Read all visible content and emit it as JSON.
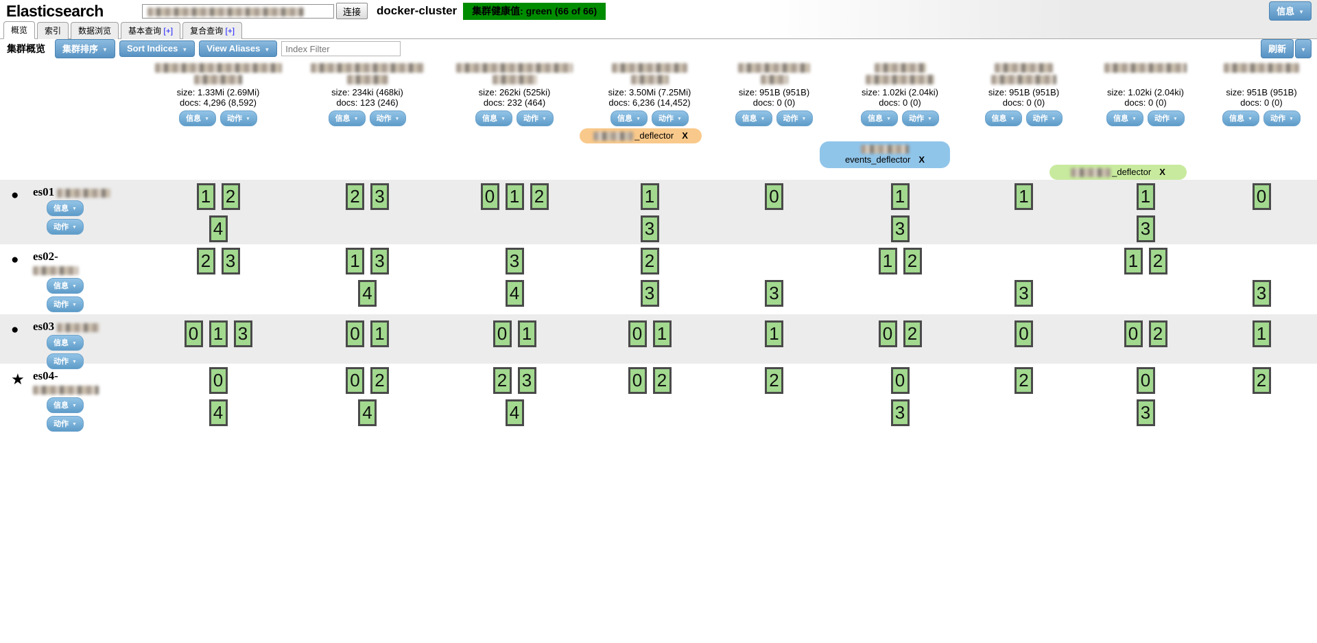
{
  "header": {
    "app_title": "Elasticsearch",
    "connect_button": "连接",
    "cluster_name": "docker-cluster",
    "health_badge": "集群健康值: green (66 of 66)",
    "info_button": "信息"
  },
  "tabs": [
    {
      "label": "概览",
      "active": true
    },
    {
      "label": "索引",
      "active": false
    },
    {
      "label": "数据浏览",
      "active": false
    },
    {
      "label": "基本查询",
      "plus": "[+]",
      "active": false
    },
    {
      "label": "复合查询",
      "plus": "[+]",
      "active": false
    }
  ],
  "toolbar": {
    "section_title": "集群概览",
    "sort_cluster": "集群排序",
    "sort_indices": "Sort Indices",
    "view_aliases": "View Aliases",
    "filter_placeholder": "Index Filter",
    "refresh": "刷新"
  },
  "index_buttons": {
    "info": "信息",
    "actions": "动作"
  },
  "indices": [
    {
      "size": "size: 1.33Mi (2.69Mi)",
      "docs": "docs: 4,296 (8,592)"
    },
    {
      "size": "size: 234ki (468ki)",
      "docs": "docs: 123 (246)"
    },
    {
      "size": "size: 262ki (525ki)",
      "docs": "docs: 232 (464)"
    },
    {
      "size": "size: 3.50Mi (7.25Mi)",
      "docs": "docs: 6,236 (14,452)"
    },
    {
      "size": "size: 951B (951B)",
      "docs": "docs: 0 (0)"
    },
    {
      "size": "size: 1.02ki (2.04ki)",
      "docs": "docs: 0 (0)"
    },
    {
      "size": "size: 951B (951B)",
      "docs": "docs: 0 (0)"
    },
    {
      "size": "size: 1.02ki (2.04ki)",
      "docs": "docs: 0 (0)"
    },
    {
      "size": "size: 951B (951B)",
      "docs": "docs: 0 (0)"
    }
  ],
  "aliases": [
    {
      "label": "_deflector",
      "close": "X",
      "color": "#f9c98b",
      "column": 4,
      "style": "prefix-redacted"
    },
    {
      "label": "events_deflector",
      "close": "X",
      "color": "#90c5ea",
      "column": 6,
      "style": "line-above-redacted"
    },
    {
      "label": "_deflector",
      "close": "X",
      "color": "#c8ea9e",
      "column": 8,
      "style": "prefix-redacted"
    }
  ],
  "nodes": [
    {
      "name": "es01",
      "name_redact_inline": true,
      "icon": "circle",
      "info_button": "信息",
      "actions_button": "动作",
      "shards": [
        {
          "l1": [
            1,
            2
          ],
          "l2": [
            4
          ]
        },
        {
          "l1": [
            2,
            3
          ],
          "l2": []
        },
        {
          "l1": [
            0,
            1,
            2
          ],
          "l2": []
        },
        {
          "l1": [
            1
          ],
          "l2": [
            3
          ]
        },
        {
          "l1": [
            0
          ],
          "l2": []
        },
        {
          "l1": [
            1
          ],
          "l2": [
            3
          ]
        },
        {
          "l1": [
            1
          ],
          "l2": []
        },
        {
          "l1": [
            1
          ],
          "l2": [
            3
          ]
        },
        {
          "l1": [
            0
          ],
          "l2": []
        }
      ]
    },
    {
      "name": "es02-",
      "name_redact_inline": false,
      "icon": "circle",
      "info_button": "信息",
      "actions_button": "动作",
      "shards": [
        {
          "l1": [
            2,
            3
          ],
          "l2": []
        },
        {
          "l1": [
            1,
            3
          ],
          "l2": [
            4
          ]
        },
        {
          "l1": [
            3
          ],
          "l2": [
            4
          ]
        },
        {
          "l1": [
            2
          ],
          "l2": [
            3
          ]
        },
        {
          "l1": [],
          "l2": [
            3
          ]
        },
        {
          "l1": [
            1,
            2
          ],
          "l2": []
        },
        {
          "l1": [],
          "l2": [
            3
          ]
        },
        {
          "l1": [
            1,
            2
          ],
          "l2": []
        },
        {
          "l1": [],
          "l2": [
            3
          ]
        }
      ]
    },
    {
      "name": "es03",
      "name_redact_inline": true,
      "icon": "circle",
      "info_button": "信息",
      "actions_button": "动作",
      "shards": [
        {
          "l1": [
            0,
            1,
            3
          ],
          "l2": []
        },
        {
          "l1": [
            0,
            1
          ],
          "l2": []
        },
        {
          "l1": [
            0,
            1
          ],
          "l2": []
        },
        {
          "l1": [
            0,
            1
          ],
          "l2": []
        },
        {
          "l1": [
            1
          ],
          "l2": []
        },
        {
          "l1": [
            0,
            2
          ],
          "l2": []
        },
        {
          "l1": [
            0
          ],
          "l2": []
        },
        {
          "l1": [
            0,
            2
          ],
          "l2": []
        },
        {
          "l1": [
            1
          ],
          "l2": []
        }
      ]
    },
    {
      "name": "es04-",
      "name_redact_inline": false,
      "icon": "star",
      "info_button": "信息",
      "actions_button": "动作",
      "shards": [
        {
          "l1": [
            0
          ],
          "l2": [
            4
          ]
        },
        {
          "l1": [
            0,
            2
          ],
          "l2": [
            4
          ]
        },
        {
          "l1": [
            2,
            3
          ],
          "l2": [
            4
          ]
        },
        {
          "l1": [
            0,
            2
          ],
          "l2": []
        },
        {
          "l1": [
            2
          ],
          "l2": []
        },
        {
          "l1": [
            0
          ],
          "l2": [
            3
          ]
        },
        {
          "l1": [
            2
          ],
          "l2": []
        },
        {
          "l1": [
            0
          ],
          "l2": [
            3
          ]
        },
        {
          "l1": [
            2
          ],
          "l2": []
        }
      ]
    }
  ],
  "colors": {
    "health_green": "#008c00",
    "shard_fill": "#a2d98f",
    "shard_border": "#4a4a4a",
    "button_blue": "#5e9cc9",
    "alias_orange": "#f9c98b",
    "alias_blue": "#90c5ea",
    "alias_green": "#c8ea9e"
  }
}
